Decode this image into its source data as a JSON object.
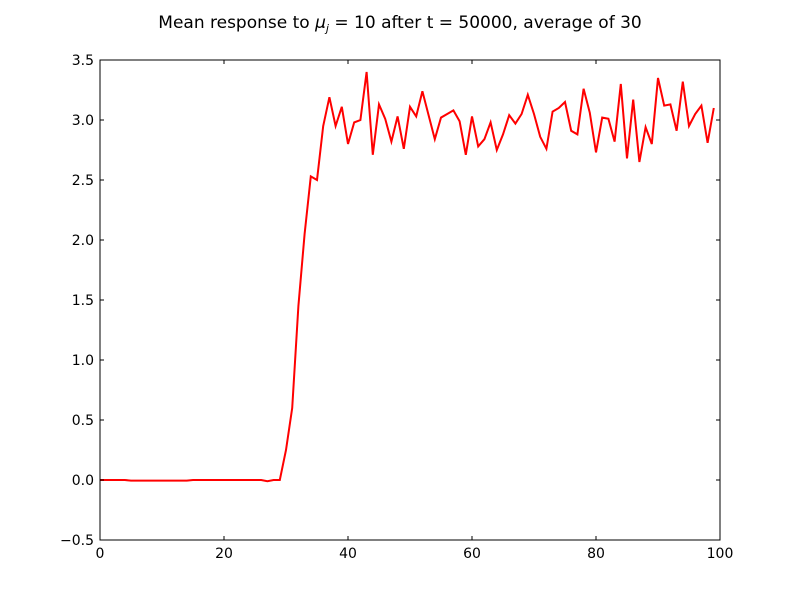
{
  "chart_data": {
    "type": "line",
    "title": {
      "prefix": "Mean response to ",
      "mu": "μ",
      "mu_sub": "j",
      "suffix": " = 10 after t = 50000, average of 30"
    },
    "xlabel": "",
    "ylabel": "",
    "xlim": [
      0,
      100
    ],
    "ylim": [
      -0.5,
      3.5
    ],
    "xticks": [
      0,
      20,
      40,
      60,
      80,
      100
    ],
    "xtick_labels": [
      "0",
      "20",
      "40",
      "60",
      "80",
      "100"
    ],
    "yticks": [
      -0.5,
      0.0,
      0.5,
      1.0,
      1.5,
      2.0,
      2.5,
      3.0,
      3.5
    ],
    "ytick_labels": [
      "−0.5",
      "0.0",
      "0.5",
      "1.0",
      "1.5",
      "2.0",
      "2.5",
      "3.0",
      "3.5"
    ],
    "grid": false,
    "series": [
      {
        "color": "#ff0000",
        "x": [
          0,
          1,
          2,
          3,
          4,
          5,
          6,
          7,
          8,
          9,
          10,
          11,
          12,
          13,
          14,
          15,
          16,
          17,
          18,
          19,
          20,
          21,
          22,
          23,
          24,
          25,
          26,
          27,
          28,
          29,
          30,
          31,
          32,
          33,
          34,
          35,
          36,
          37,
          38,
          39,
          40,
          41,
          42,
          43,
          44,
          45,
          46,
          47,
          48,
          49,
          50,
          51,
          52,
          53,
          54,
          55,
          56,
          57,
          58,
          59,
          60,
          61,
          62,
          63,
          64,
          65,
          66,
          67,
          68,
          69,
          70,
          71,
          72,
          73,
          74,
          75,
          76,
          77,
          78,
          79,
          80,
          81,
          82,
          83,
          84,
          85,
          86,
          87,
          88,
          89,
          90,
          91,
          92,
          93,
          94,
          95,
          96,
          97,
          98,
          99
        ],
        "y": [
          0,
          0,
          0,
          0,
          0,
          -0.005,
          -0.005,
          -0.005,
          -0.005,
          -0.005,
          -0.005,
          -0.005,
          -0.005,
          -0.005,
          -0.005,
          0,
          0,
          0,
          0,
          0,
          0,
          0,
          0,
          0,
          0,
          0,
          0,
          -0.01,
          0,
          0,
          0.25,
          0.6,
          1.45,
          2.05,
          2.53,
          2.5,
          2.95,
          3.19,
          2.95,
          3.11,
          2.8,
          2.98,
          3.0,
          3.4,
          2.71,
          3.13,
          3.01,
          2.82,
          3.03,
          2.76,
          3.11,
          3.03,
          3.24,
          3.04,
          2.84,
          3.02,
          3.05,
          3.08,
          2.99,
          2.71,
          3.03,
          2.78,
          2.84,
          2.98,
          2.75,
          2.88,
          3.04,
          2.97,
          3.05,
          3.21,
          3.05,
          2.86,
          2.76,
          3.07,
          3.1,
          3.15,
          2.91,
          2.88,
          3.26,
          3.06,
          2.73,
          3.02,
          3.01,
          2.82,
          3.3,
          2.68,
          3.17,
          2.65,
          2.94,
          2.8,
          3.35,
          3.12,
          3.13,
          2.91,
          3.32,
          2.95,
          3.05,
          3.12,
          2.81,
          3.1
        ]
      }
    ]
  },
  "colors": {
    "line": "#ff0000",
    "axes": "#000000",
    "background": "#ffffff"
  }
}
